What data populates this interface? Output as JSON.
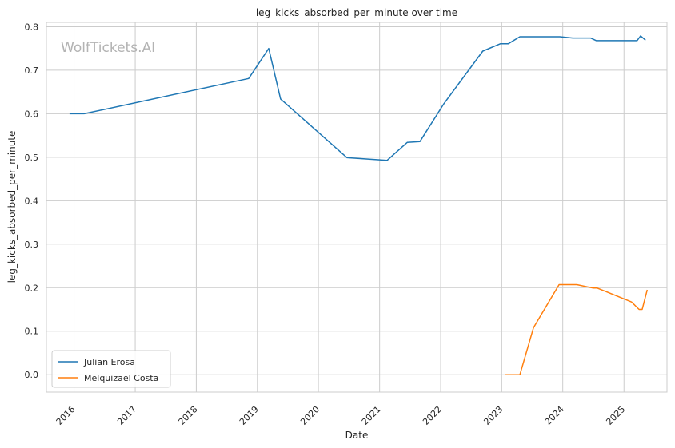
{
  "chart_data": {
    "type": "line",
    "title": "leg_kicks_absorbed_per_minute over time",
    "xlabel": "Date",
    "ylabel": "leg_kicks_absorbed_per_minute",
    "watermark": "WolfTickets.AI",
    "xlim": [
      "2015-07-20",
      "2025-09-15"
    ],
    "ylim": [
      -0.04,
      0.81
    ],
    "x_ticks": [
      "2016",
      "2017",
      "2018",
      "2019",
      "2020",
      "2021",
      "2022",
      "2023",
      "2024",
      "2025"
    ],
    "y_ticks": [
      "0.0",
      "0.1",
      "0.2",
      "0.3",
      "0.4",
      "0.5",
      "0.6",
      "0.7",
      "0.8"
    ],
    "grid": true,
    "legend_position": "lower-left",
    "series": [
      {
        "name": "Julian Erosa",
        "color": "#1f77b4",
        "points": [
          [
            "2015-12-05",
            0.6
          ],
          [
            "2016-03-01",
            0.6
          ],
          [
            "2018-11-10",
            0.681
          ],
          [
            "2019-03-10",
            0.75
          ],
          [
            "2019-05-20",
            0.634
          ],
          [
            "2020-06-20",
            0.499
          ],
          [
            "2021-02-15",
            0.493
          ],
          [
            "2021-06-15",
            0.534
          ],
          [
            "2021-08-30",
            0.536
          ],
          [
            "2022-01-20",
            0.623
          ],
          [
            "2022-09-10",
            0.744
          ],
          [
            "2022-12-25",
            0.761
          ],
          [
            "2023-02-10",
            0.761
          ],
          [
            "2023-04-20",
            0.777
          ],
          [
            "2023-12-15",
            0.777
          ],
          [
            "2024-03-01",
            0.774
          ],
          [
            "2024-06-15",
            0.774
          ],
          [
            "2024-07-20",
            0.768
          ],
          [
            "2025-03-20",
            0.768
          ],
          [
            "2025-04-10",
            0.779
          ],
          [
            "2025-05-10",
            0.769
          ]
        ]
      },
      {
        "name": "Melquizael Costa",
        "color": "#ff7f0e",
        "points": [
          [
            "2023-01-20",
            0.0
          ],
          [
            "2023-04-20",
            0.0
          ],
          [
            "2023-07-10",
            0.108
          ],
          [
            "2023-12-10",
            0.207
          ],
          [
            "2024-03-25",
            0.207
          ],
          [
            "2024-07-01",
            0.199
          ],
          [
            "2024-07-25",
            0.199
          ],
          [
            "2025-02-15",
            0.167
          ],
          [
            "2025-04-01",
            0.15
          ],
          [
            "2025-04-20",
            0.15
          ],
          [
            "2025-05-20",
            0.195
          ]
        ]
      }
    ]
  }
}
